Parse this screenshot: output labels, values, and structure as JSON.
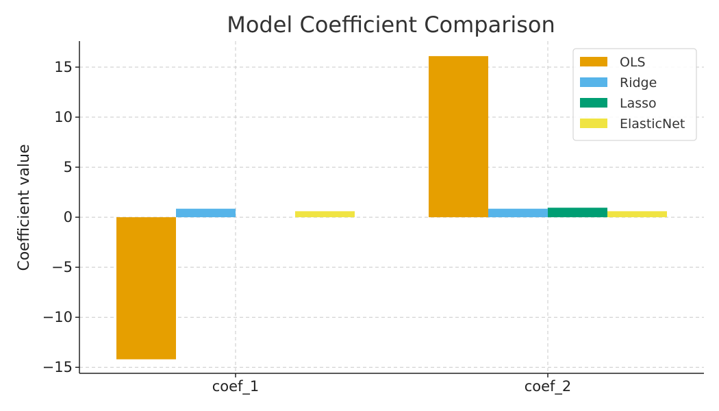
{
  "chart_data": {
    "type": "bar",
    "title": "Model Coefficient Comparison",
    "xlabel": "",
    "ylabel": "Coefficient value",
    "categories": [
      "coef_1",
      "coef_2"
    ],
    "series": [
      {
        "name": "OLS",
        "values": [
          -14.2,
          16.1
        ],
        "color": "#E69F00"
      },
      {
        "name": "Ridge",
        "values": [
          0.85,
          0.85
        ],
        "color": "#56B4E9"
      },
      {
        "name": "Lasso",
        "values": [
          0.0,
          0.95
        ],
        "color": "#009E73"
      },
      {
        "name": "ElasticNet",
        "values": [
          0.6,
          0.6
        ],
        "color": "#F0E442"
      }
    ],
    "ylim": [
      -15.6,
      17.6
    ],
    "yticks": [
      15,
      10,
      5,
      0,
      -5,
      -10,
      -15
    ],
    "ytick_labels": [
      "15",
      "10",
      "5",
      "0",
      "−5",
      "−10",
      "−15"
    ],
    "grid": true,
    "legend_position": "top-right"
  }
}
